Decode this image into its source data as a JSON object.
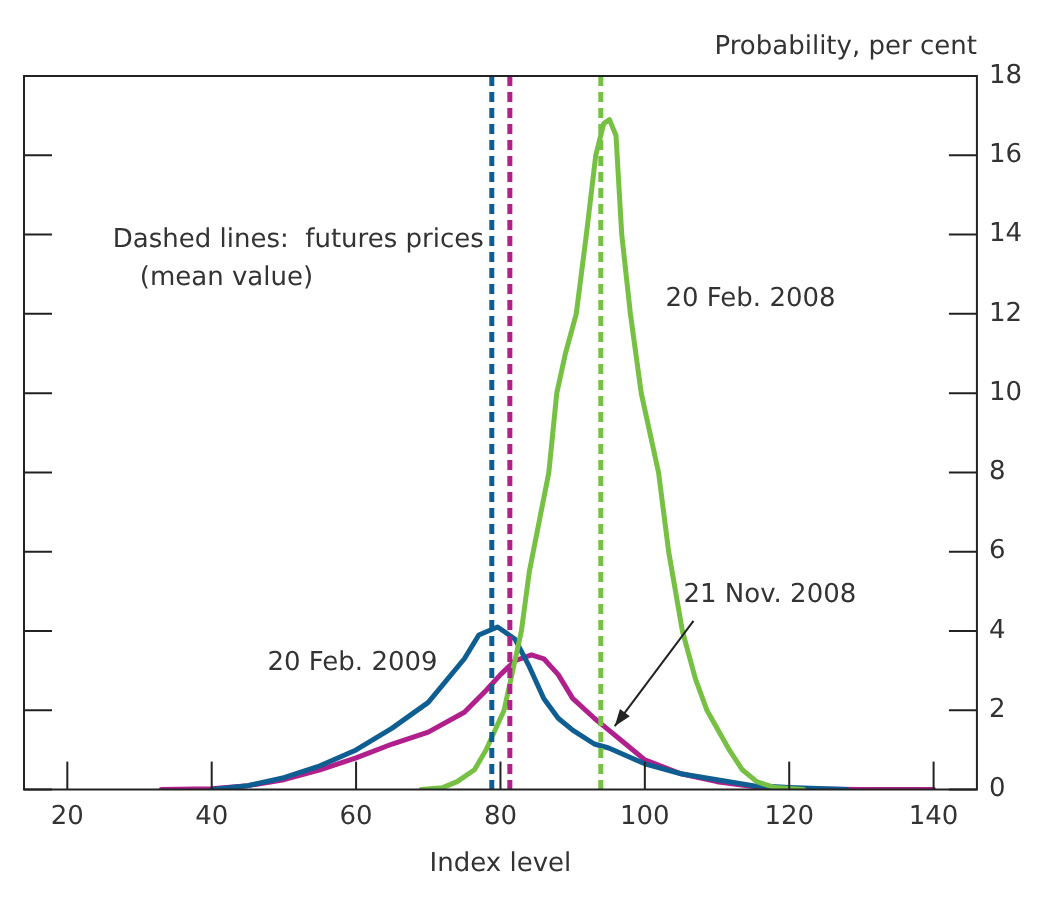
{
  "chart_data": {
    "type": "line",
    "xlabel": "Index level",
    "ylabel": "Probability, per cent",
    "xlim": [
      14,
      146
    ],
    "xticks": [
      20,
      40,
      60,
      80,
      100,
      120,
      140
    ],
    "ylim": [
      0,
      18
    ],
    "yticks": [
      0,
      2,
      4,
      6,
      8,
      10,
      12,
      14,
      16,
      18
    ],
    "grid": false,
    "legend": false,
    "marker": "none",
    "line_style": "solid",
    "series": [
      {
        "name": "20 Feb. 2008",
        "color": "#76c043",
        "x": [
          69,
          72,
          74,
          76.4,
          78,
          80.5,
          82.9,
          84,
          86.7,
          87.8,
          89,
          90.5,
          91.9,
          93.2,
          94.3,
          95.1,
          96,
          96.8,
          98,
          99.5,
          101.9,
          103.3,
          105.2,
          107,
          108.6,
          111.7,
          113.5,
          115.5,
          118,
          122
        ],
        "values": [
          0,
          0.05,
          0.2,
          0.5,
          1,
          2,
          4,
          5.5,
          8,
          10,
          11,
          12,
          14,
          16,
          16.8,
          16.9,
          16.5,
          14,
          12,
          10,
          8,
          6,
          4,
          2.8,
          2,
          1,
          0.5,
          0.2,
          0.05,
          0
        ]
      },
      {
        "name": "20 Feb. 2009",
        "color": "#0f5e92",
        "x": [
          40,
          45,
          50,
          55,
          60,
          65,
          70,
          75,
          77,
          79.6,
          82,
          84,
          86,
          88,
          90,
          93,
          95,
          100,
          105,
          110,
          115,
          120,
          128
        ],
        "values": [
          0,
          0.1,
          0.3,
          0.6,
          1,
          1.55,
          2.2,
          3.3,
          3.9,
          4.1,
          3.8,
          3.1,
          2.3,
          1.8,
          1.5,
          1.15,
          1.05,
          0.65,
          0.4,
          0.25,
          0.1,
          0.05,
          0
        ]
      },
      {
        "name": "21 Nov. 2008",
        "color": "#b01f8c",
        "x": [
          33,
          40,
          45,
          50,
          55,
          60,
          65,
          70,
          75,
          78,
          80,
          82,
          84.3,
          86,
          88,
          90,
          93,
          95,
          97,
          100,
          105,
          110,
          115,
          120,
          130,
          140
        ],
        "values": [
          0,
          0.02,
          0.1,
          0.25,
          0.5,
          0.8,
          1.15,
          1.45,
          1.95,
          2.5,
          2.9,
          3.25,
          3.4,
          3.3,
          2.9,
          2.3,
          1.8,
          1.5,
          1.2,
          0.75,
          0.4,
          0.2,
          0.08,
          0.02,
          0,
          0
        ]
      }
    ],
    "ref_lines": [
      {
        "axis": "x",
        "value": 78.8,
        "color": "#0f5e92",
        "line_style": "dashed"
      },
      {
        "axis": "x",
        "value": 81.3,
        "color": "#b01f8c",
        "line_style": "dashed"
      },
      {
        "axis": "x",
        "value": 93.9,
        "color": "#76c043",
        "line_style": "dashed"
      }
    ],
    "annotations": [
      "Dashed lines:  futures prices",
      "(mean value)"
    ]
  }
}
